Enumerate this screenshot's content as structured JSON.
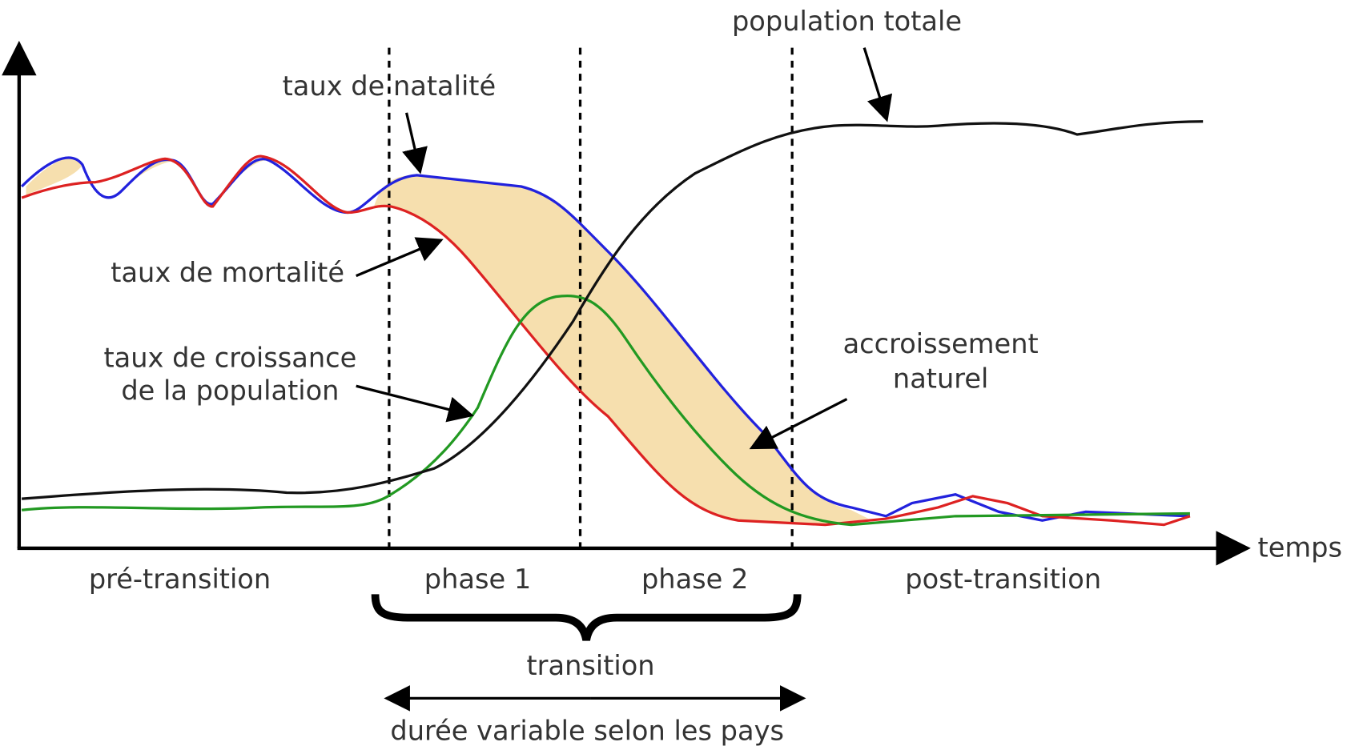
{
  "labels": {
    "population_totale": "population totale",
    "natalite": "taux de natalité",
    "mortalite": "taux de mortalité",
    "croissance": [
      "taux de croissance",
      "de la population"
    ],
    "accroissement": [
      "accroissement",
      "naturel"
    ],
    "temps": "temps",
    "phases": [
      "pré-transition",
      "phase 1",
      "phase 2",
      "post-transition"
    ],
    "transition": "transition",
    "duree": "durée variable selon les pays"
  }
}
